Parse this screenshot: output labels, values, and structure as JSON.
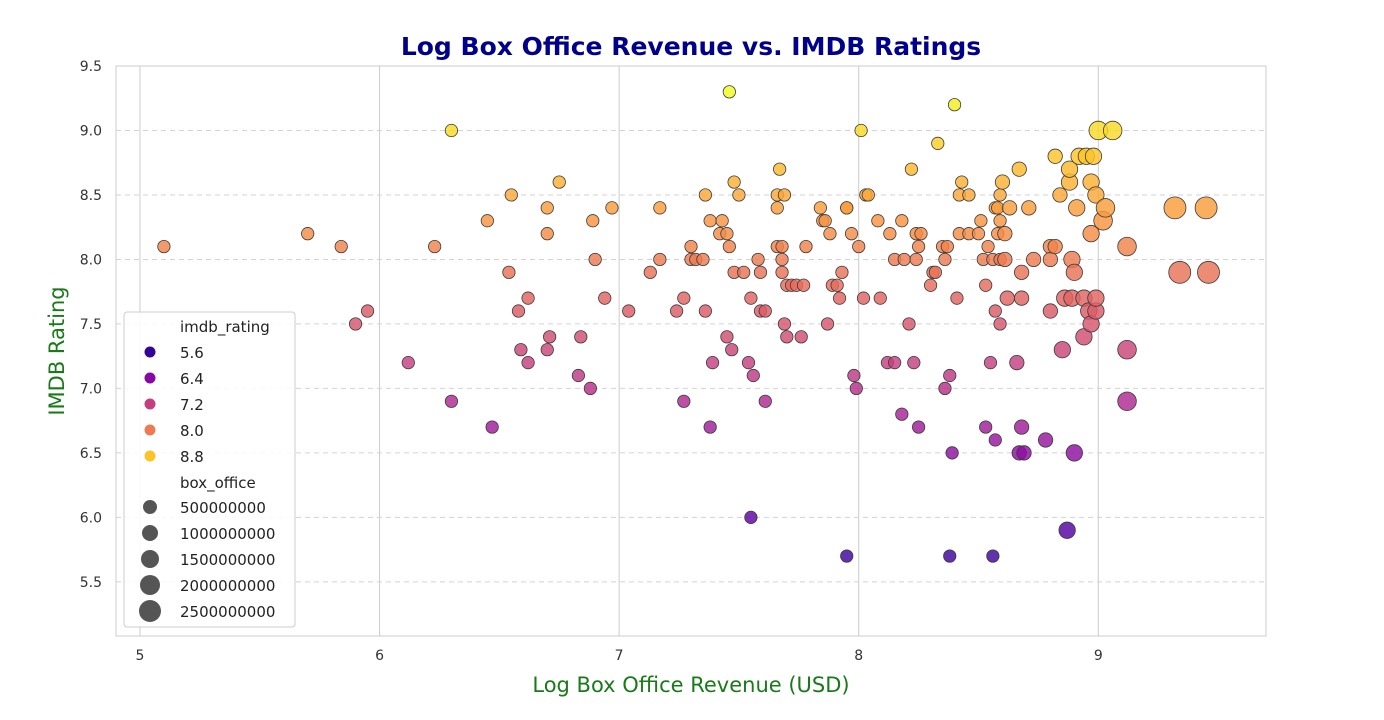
{
  "chart_data": {
    "type": "scatter",
    "title": "Log Box Office Revenue vs. IMDB Ratings",
    "xlabel": "Log Box Office Revenue (USD)",
    "ylabel": "IMDB Rating",
    "xlim": [
      4.9,
      9.7
    ],
    "ylim": [
      5.08,
      9.5
    ],
    "xticks": [
      "5",
      "6",
      "7",
      "8",
      "9"
    ],
    "yticks": [
      "5.5",
      "6.0",
      "6.5",
      "7.0",
      "7.5",
      "8.0",
      "8.5",
      "9.0",
      "9.5"
    ],
    "x_grid": true,
    "y_grid": "dashed",
    "colormap": "plasma",
    "color_range": [
      5.3,
      9.3
    ],
    "title_color": "#00008b",
    "label_color": "#1a7a1a",
    "legend_position": "lower-left",
    "legend": {
      "hue_title": "imdb_rating",
      "hue_entries": [
        "5.6",
        "6.4",
        "7.2",
        "8.0",
        "8.8"
      ],
      "size_title": "box_office",
      "size_entries": [
        "500000000",
        "1000000000",
        "1500000000",
        "2000000000",
        "2500000000"
      ]
    },
    "points": [
      [
        5.1,
        8.1,
        1
      ],
      [
        5.7,
        8.2,
        1
      ],
      [
        5.84,
        8.1,
        1
      ],
      [
        5.9,
        7.5,
        1
      ],
      [
        5.95,
        7.6,
        1
      ],
      [
        6.12,
        7.2,
        1
      ],
      [
        6.23,
        8.1,
        1
      ],
      [
        6.3,
        9.0,
        1
      ],
      [
        6.3,
        6.9,
        1
      ],
      [
        6.45,
        8.3,
        1
      ],
      [
        6.47,
        6.7,
        1
      ],
      [
        6.54,
        7.9,
        1
      ],
      [
        6.55,
        8.5,
        1
      ],
      [
        6.58,
        7.6,
        1
      ],
      [
        6.59,
        7.3,
        1
      ],
      [
        6.62,
        7.2,
        1
      ],
      [
        6.62,
        7.7,
        1
      ],
      [
        6.7,
        8.4,
        1
      ],
      [
        6.7,
        8.2,
        1
      ],
      [
        6.7,
        7.3,
        1
      ],
      [
        6.71,
        7.4,
        1
      ],
      [
        6.75,
        8.6,
        1
      ],
      [
        6.83,
        7.1,
        1
      ],
      [
        6.84,
        7.4,
        1
      ],
      [
        6.88,
        7.0,
        1
      ],
      [
        6.89,
        8.3,
        1
      ],
      [
        6.9,
        8.0,
        1
      ],
      [
        6.94,
        7.7,
        1
      ],
      [
        6.97,
        8.4,
        1
      ],
      [
        7.04,
        7.6,
        1
      ],
      [
        7.13,
        7.9,
        1
      ],
      [
        7.17,
        8.0,
        1
      ],
      [
        7.17,
        8.4,
        1
      ],
      [
        7.24,
        7.6,
        1
      ],
      [
        7.27,
        7.7,
        1
      ],
      [
        7.27,
        6.9,
        1
      ],
      [
        7.3,
        8.1,
        1
      ],
      [
        7.3,
        8.0,
        1
      ],
      [
        7.32,
        8.0,
        1
      ],
      [
        7.35,
        8.0,
        1
      ],
      [
        7.36,
        8.5,
        1
      ],
      [
        7.36,
        7.6,
        1
      ],
      [
        7.38,
        8.3,
        1
      ],
      [
        7.38,
        6.7,
        1
      ],
      [
        7.39,
        7.2,
        1
      ],
      [
        7.42,
        8.2,
        1
      ],
      [
        7.43,
        8.3,
        1
      ],
      [
        7.45,
        8.2,
        1
      ],
      [
        7.45,
        7.4,
        1
      ],
      [
        7.46,
        8.1,
        1
      ],
      [
        7.46,
        9.3,
        1
      ],
      [
        7.47,
        7.3,
        1
      ],
      [
        7.48,
        8.6,
        1
      ],
      [
        7.48,
        7.9,
        1
      ],
      [
        7.5,
        8.5,
        1
      ],
      [
        7.52,
        7.9,
        1
      ],
      [
        7.54,
        7.2,
        1
      ],
      [
        7.55,
        7.7,
        1
      ],
      [
        7.55,
        6.0,
        1
      ],
      [
        7.56,
        7.1,
        1
      ],
      [
        7.58,
        8.0,
        1
      ],
      [
        7.59,
        7.6,
        1
      ],
      [
        7.59,
        7.9,
        1
      ],
      [
        7.61,
        6.9,
        1
      ],
      [
        7.61,
        7.6,
        1
      ],
      [
        7.66,
        8.5,
        1
      ],
      [
        7.66,
        8.4,
        1
      ],
      [
        7.66,
        8.1,
        1
      ],
      [
        7.67,
        8.7,
        1
      ],
      [
        7.68,
        8.1,
        1
      ],
      [
        7.68,
        8.0,
        1
      ],
      [
        7.68,
        7.9,
        1
      ],
      [
        7.69,
        7.5,
        1
      ],
      [
        7.69,
        8.5,
        1
      ],
      [
        7.7,
        7.8,
        1
      ],
      [
        7.7,
        7.4,
        1
      ],
      [
        7.72,
        7.8,
        1
      ],
      [
        7.74,
        7.8,
        1
      ],
      [
        7.76,
        7.4,
        1
      ],
      [
        7.77,
        7.8,
        1
      ],
      [
        7.78,
        8.1,
        1
      ],
      [
        7.84,
        8.4,
        1
      ],
      [
        7.85,
        8.3,
        1
      ],
      [
        7.86,
        8.3,
        1
      ],
      [
        7.87,
        7.5,
        1
      ],
      [
        7.88,
        8.2,
        1
      ],
      [
        7.89,
        7.8,
        1
      ],
      [
        7.91,
        7.8,
        1
      ],
      [
        7.92,
        7.7,
        1
      ],
      [
        7.93,
        7.9,
        1
      ],
      [
        7.95,
        5.7,
        1
      ],
      [
        7.95,
        8.4,
        1
      ],
      [
        7.95,
        8.4,
        1
      ],
      [
        7.97,
        8.2,
        1
      ],
      [
        7.98,
        7.1,
        1
      ],
      [
        7.99,
        7.0,
        1
      ],
      [
        8.0,
        8.1,
        1
      ],
      [
        8.01,
        9.0,
        1
      ],
      [
        8.02,
        7.7,
        1
      ],
      [
        8.03,
        8.5,
        1
      ],
      [
        8.04,
        8.5,
        1
      ],
      [
        8.08,
        8.3,
        1
      ],
      [
        8.09,
        7.7,
        1
      ],
      [
        8.12,
        7.2,
        1
      ],
      [
        8.13,
        8.2,
        1
      ],
      [
        8.15,
        7.2,
        1
      ],
      [
        8.15,
        8.0,
        1
      ],
      [
        8.18,
        6.8,
        1
      ],
      [
        8.18,
        8.3,
        1
      ],
      [
        8.19,
        8.0,
        1
      ],
      [
        8.21,
        7.5,
        1
      ],
      [
        8.22,
        8.7,
        1
      ],
      [
        8.23,
        7.2,
        1
      ],
      [
        8.24,
        8.0,
        1
      ],
      [
        8.24,
        8.2,
        1
      ],
      [
        8.25,
        8.1,
        1
      ],
      [
        8.25,
        6.7,
        1
      ],
      [
        8.26,
        8.2,
        1
      ],
      [
        8.3,
        7.8,
        1
      ],
      [
        8.31,
        7.9,
        1
      ],
      [
        8.32,
        7.9,
        1
      ],
      [
        8.33,
        8.9,
        1
      ],
      [
        8.35,
        8.1,
        1
      ],
      [
        8.36,
        7.0,
        1
      ],
      [
        8.36,
        8.0,
        1
      ],
      [
        8.37,
        8.1,
        1
      ],
      [
        8.38,
        5.7,
        1
      ],
      [
        8.38,
        7.1,
        1
      ],
      [
        8.39,
        6.5,
        1
      ],
      [
        8.4,
        9.2,
        1
      ],
      [
        8.41,
        7.7,
        1
      ],
      [
        8.42,
        8.2,
        1
      ],
      [
        8.42,
        8.5,
        1
      ],
      [
        8.43,
        8.6,
        1
      ],
      [
        8.46,
        8.5,
        1
      ],
      [
        8.46,
        8.2,
        1
      ],
      [
        8.5,
        8.2,
        1
      ],
      [
        8.51,
        8.3,
        1
      ],
      [
        8.52,
        8.0,
        1
      ],
      [
        8.53,
        7.8,
        1
      ],
      [
        8.53,
        6.7,
        1
      ],
      [
        8.54,
        8.1,
        1
      ],
      [
        8.55,
        7.2,
        1
      ],
      [
        8.56,
        5.7,
        1
      ],
      [
        8.56,
        8.0,
        1
      ],
      [
        8.57,
        7.6,
        1
      ],
      [
        8.57,
        8.4,
        1
      ],
      [
        8.57,
        6.6,
        1
      ],
      [
        8.58,
        8.2,
        1
      ],
      [
        8.58,
        8.4,
        1
      ],
      [
        8.59,
        7.5,
        1
      ],
      [
        8.59,
        8.0,
        1
      ],
      [
        8.59,
        8.5,
        1
      ],
      [
        8.59,
        8.3,
        1
      ],
      [
        8.6,
        8.6,
        1
      ],
      [
        8.61,
        8.2,
        1
      ],
      [
        8.61,
        8.0,
        1
      ],
      [
        8.62,
        7.7,
        1
      ],
      [
        8.63,
        8.4,
        1
      ],
      [
        8.66,
        7.2,
        1
      ],
      [
        8.67,
        8.7,
        1
      ],
      [
        8.67,
        6.5,
        1
      ],
      [
        8.68,
        6.7,
        1
      ],
      [
        8.68,
        7.9,
        1
      ],
      [
        8.68,
        7.7,
        1
      ],
      [
        8.69,
        6.5,
        1
      ],
      [
        8.71,
        8.4,
        1
      ],
      [
        8.73,
        8.0,
        1
      ],
      [
        8.78,
        6.6,
        1
      ],
      [
        8.8,
        7.6,
        1
      ],
      [
        8.8,
        8.1,
        1
      ],
      [
        8.8,
        8.0,
        1
      ],
      [
        8.82,
        8.1,
        1
      ],
      [
        8.82,
        8.8,
        1
      ],
      [
        8.84,
        8.5,
        1
      ],
      [
        8.85,
        7.3,
        1
      ],
      [
        8.86,
        7.7,
        1
      ],
      [
        8.87,
        5.9,
        1
      ],
      [
        8.88,
        8.6,
        1
      ],
      [
        8.88,
        8.7,
        1
      ],
      [
        8.89,
        7.7,
        1
      ],
      [
        8.89,
        8.0,
        1
      ],
      [
        8.9,
        7.9,
        1
      ],
      [
        8.9,
        6.5,
        1
      ],
      [
        8.91,
        8.4,
        1
      ],
      [
        8.92,
        8.8,
        1
      ],
      [
        8.94,
        7.7,
        1
      ],
      [
        8.94,
        7.4,
        1
      ],
      [
        8.95,
        8.8,
        1
      ],
      [
        8.96,
        7.6,
        1
      ],
      [
        8.97,
        7.5,
        1
      ],
      [
        8.97,
        8.2,
        1
      ],
      [
        8.97,
        8.6,
        1
      ],
      [
        8.98,
        8.8,
        1
      ],
      [
        8.99,
        8.5,
        1
      ],
      [
        8.99,
        7.6,
        1
      ],
      [
        8.99,
        7.7,
        1
      ],
      [
        9.0,
        9.0,
        1
      ],
      [
        9.02,
        8.3,
        1
      ],
      [
        9.03,
        8.4,
        1
      ],
      [
        9.06,
        9.0,
        1
      ],
      [
        9.12,
        8.1,
        1
      ],
      [
        9.12,
        7.3,
        1
      ],
      [
        9.12,
        6.9,
        1
      ],
      [
        9.32,
        8.4,
        1
      ],
      [
        9.34,
        7.9,
        1
      ],
      [
        9.45,
        8.4,
        1
      ],
      [
        9.46,
        7.9,
        1
      ]
    ]
  }
}
